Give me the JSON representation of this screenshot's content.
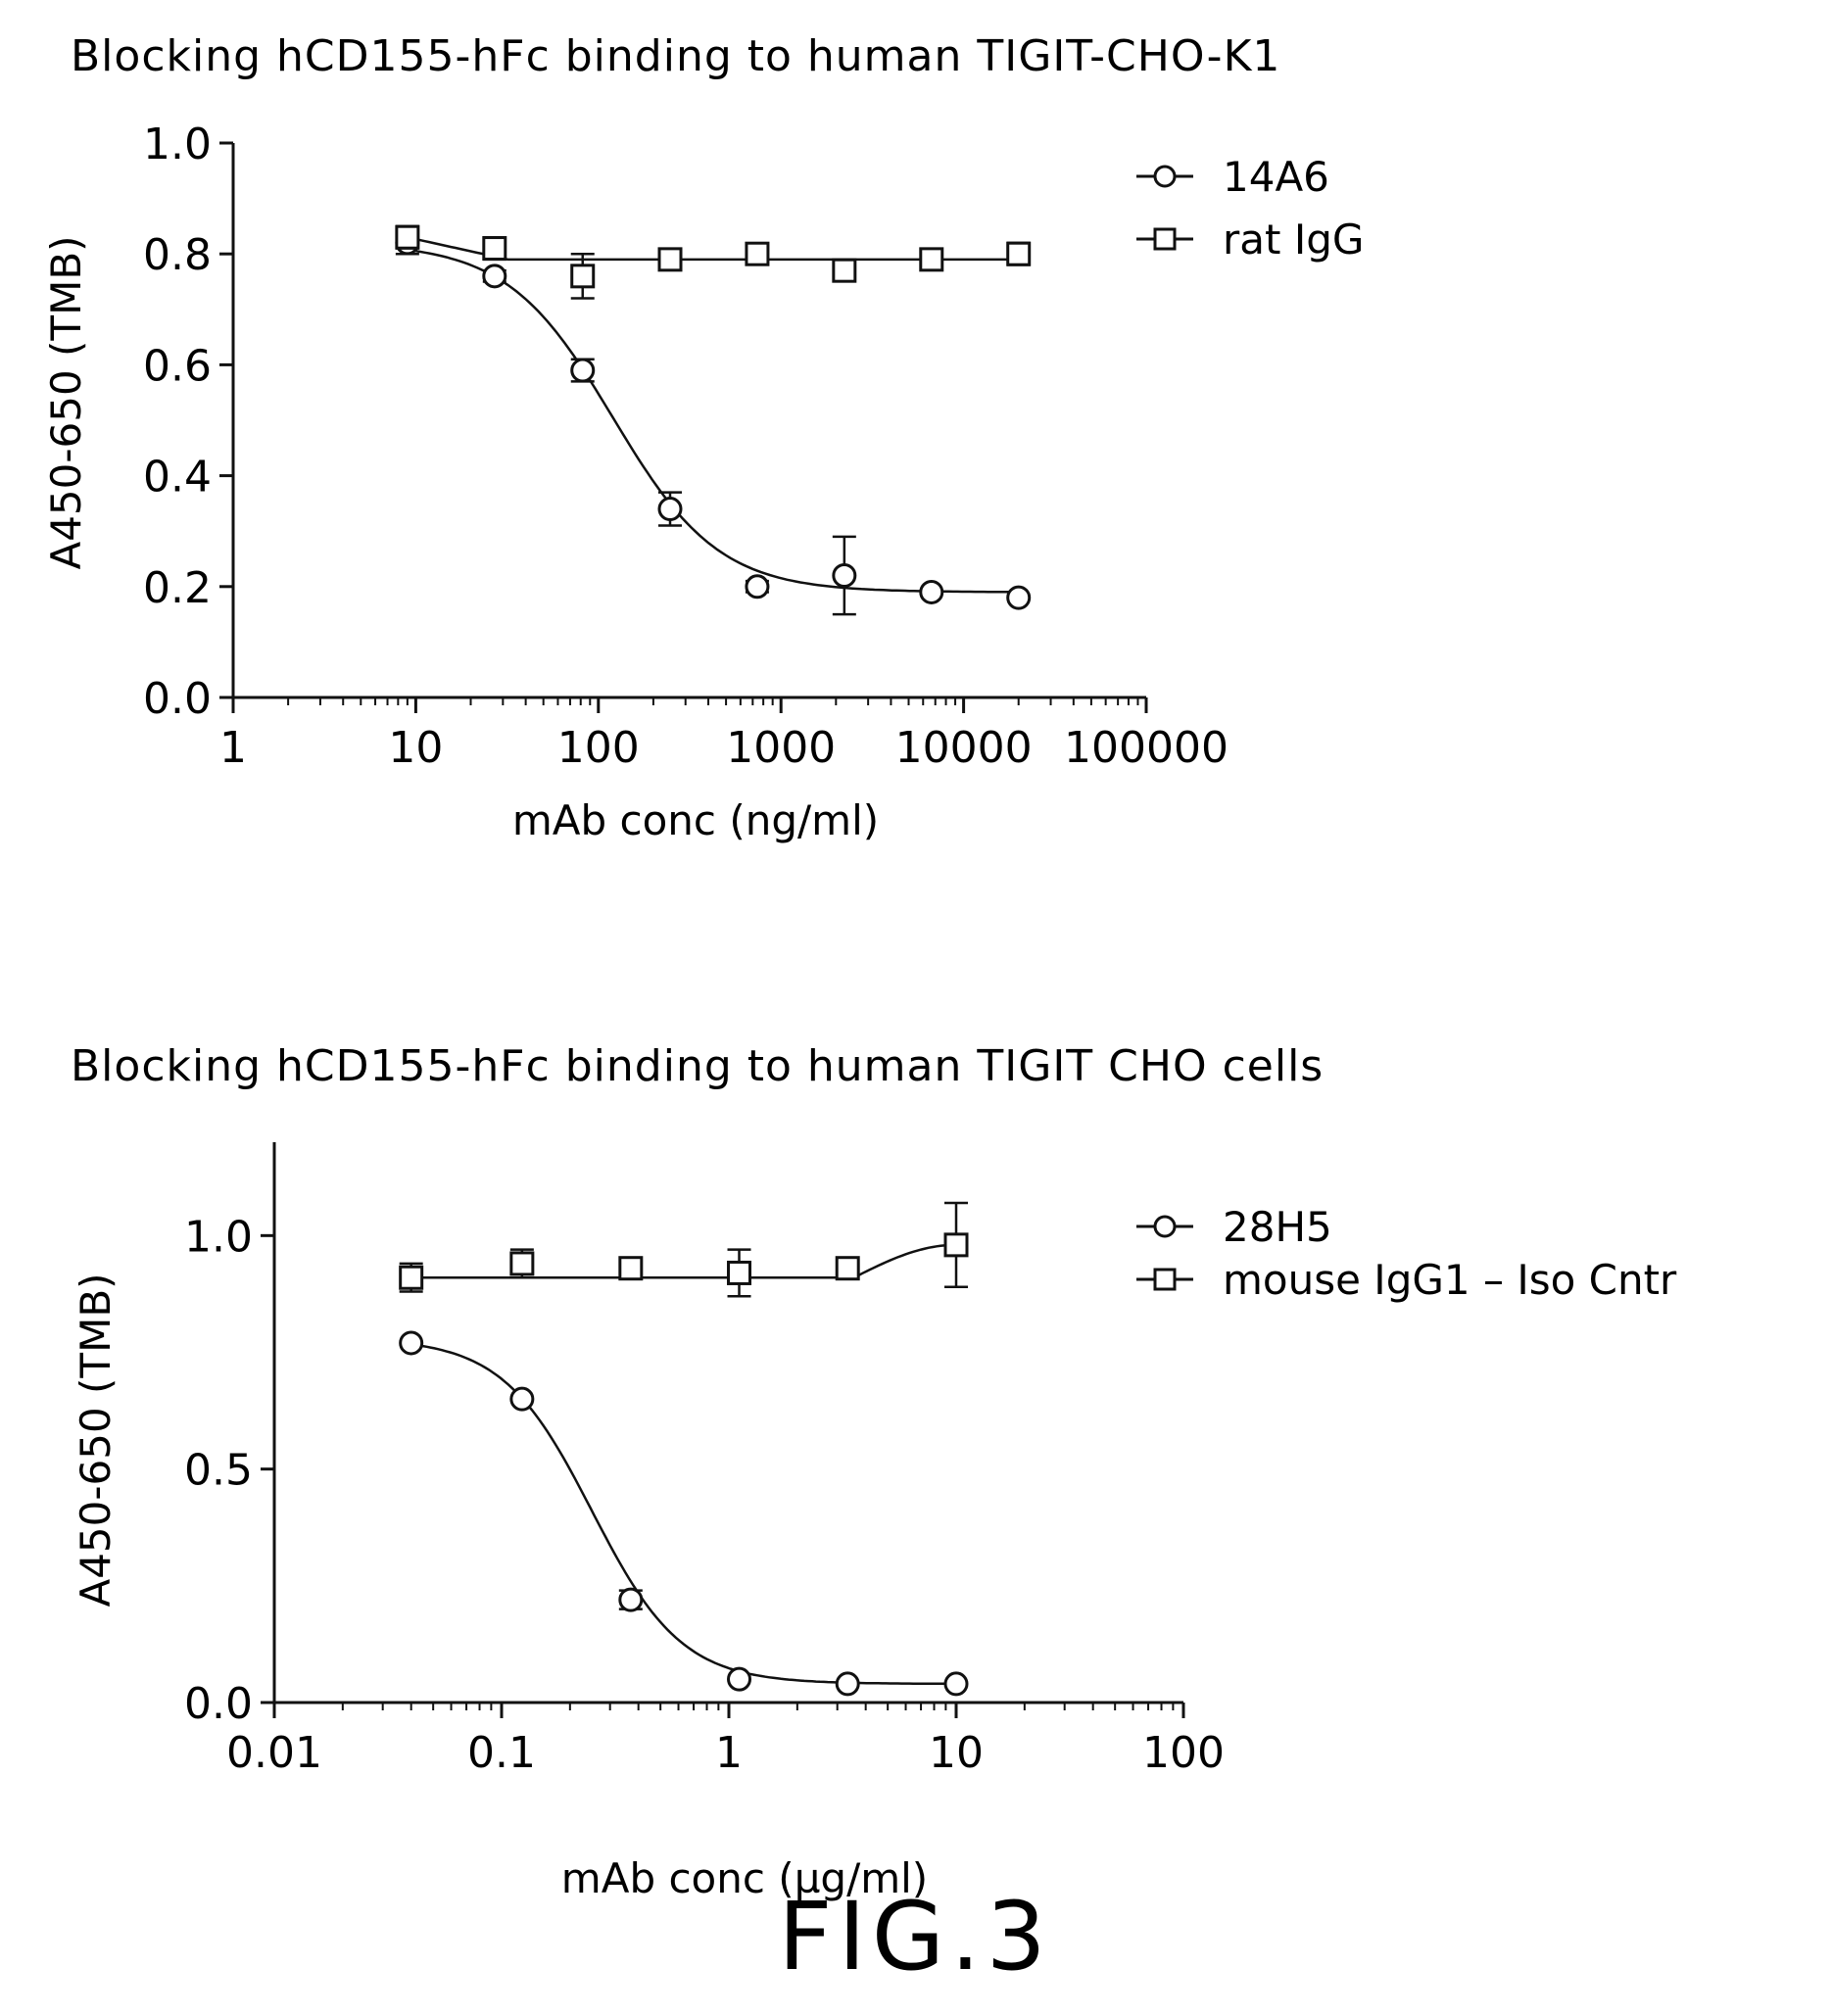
{
  "figure_label": "FIG.3",
  "colors": {
    "ink": "#111111",
    "background": "#ffffff"
  },
  "chart_data": [
    {
      "type": "scatter",
      "title": "Blocking hCD155-hFc binding to human TIGIT-CHO-K1",
      "xlabel": "mAb conc (ng/ml)",
      "ylabel": "A450-650 (TMB)",
      "xscale": "log",
      "xlim": [
        1,
        100000
      ],
      "ylim": [
        0.0,
        1.0
      ],
      "x_ticks": [
        1,
        10,
        100,
        1000,
        10000,
        100000
      ],
      "x_tick_labels": [
        "1",
        "10",
        "100",
        "1000",
        "10000",
        "100000"
      ],
      "y_ticks": [
        0.0,
        0.2,
        0.4,
        0.6,
        0.8,
        1.0
      ],
      "y_tick_labels": [
        "0.0",
        "0.2",
        "0.4",
        "0.6",
        "0.8",
        "1.0"
      ],
      "legend_position": "top-right",
      "grid": false,
      "series": [
        {
          "name": "14A6",
          "marker": "circle",
          "fit": {
            "top": 0.82,
            "bottom": 0.19,
            "ec50": 120,
            "hill": 1.5
          },
          "points": [
            {
              "x": 9,
              "y": 0.82,
              "err": 0.02
            },
            {
              "x": 27,
              "y": 0.76,
              "err": 0.01
            },
            {
              "x": 82,
              "y": 0.59,
              "err": 0.02
            },
            {
              "x": 247,
              "y": 0.34,
              "err": 0.03
            },
            {
              "x": 741,
              "y": 0.2,
              "err": 0.01
            },
            {
              "x": 2222,
              "y": 0.22,
              "err": 0.07
            },
            {
              "x": 6667,
              "y": 0.19,
              "err": 0.0
            },
            {
              "x": 20000,
              "y": 0.18,
              "err": 0.0
            }
          ]
        },
        {
          "name": "rat IgG",
          "marker": "square",
          "fit": {
            "line": 0.79,
            "start_y": 0.83
          },
          "points": [
            {
              "x": 9,
              "y": 0.83,
              "err": 0.02
            },
            {
              "x": 27,
              "y": 0.81,
              "err": 0.02
            },
            {
              "x": 82,
              "y": 0.76,
              "err": 0.04
            },
            {
              "x": 247,
              "y": 0.79,
              "err": 0.0
            },
            {
              "x": 741,
              "y": 0.8,
              "err": 0.01
            },
            {
              "x": 2222,
              "y": 0.77,
              "err": 0.01
            },
            {
              "x": 6667,
              "y": 0.79,
              "err": 0.0
            },
            {
              "x": 20000,
              "y": 0.8,
              "err": 0.02
            }
          ]
        }
      ]
    },
    {
      "type": "scatter",
      "title": "Blocking hCD155-hFc binding to human  TIGIT CHO cells",
      "xlabel": "mAb conc (µg/ml)",
      "ylabel": "A450-650 (TMB)",
      "xscale": "log",
      "xlim": [
        0.01,
        100
      ],
      "ylim": [
        0.0,
        1.2
      ],
      "x_ticks": [
        0.01,
        0.1,
        1,
        10,
        100
      ],
      "x_tick_labels": [
        "0.01",
        "0.1",
        "1",
        "10",
        "100"
      ],
      "y_ticks": [
        0.0,
        0.5,
        1.0
      ],
      "y_tick_labels": [
        "0.0",
        "0.5",
        "1.0"
      ],
      "legend_position": "top-right",
      "grid": false,
      "series": [
        {
          "name": "28H5",
          "marker": "circle",
          "fit": {
            "top": 0.78,
            "bottom": 0.04,
            "ec50": 0.25,
            "hill": 2.2
          },
          "points": [
            {
              "x": 0.04,
              "y": 0.77,
              "err": 0.0
            },
            {
              "x": 0.123,
              "y": 0.65,
              "err": 0.0
            },
            {
              "x": 0.37,
              "y": 0.22,
              "err": 0.02
            },
            {
              "x": 1.11,
              "y": 0.05,
              "err": 0.0
            },
            {
              "x": 3.33,
              "y": 0.04,
              "err": 0.0
            },
            {
              "x": 10,
              "y": 0.04,
              "err": 0.0
            }
          ]
        },
        {
          "name": "mouse IgG1 – Iso Cntr",
          "marker": "square",
          "fit": {
            "line": 0.91,
            "end_y": 0.98
          },
          "points": [
            {
              "x": 0.04,
              "y": 0.91,
              "err": 0.03
            },
            {
              "x": 0.123,
              "y": 0.94,
              "err": 0.03
            },
            {
              "x": 0.37,
              "y": 0.93,
              "err": 0.0
            },
            {
              "x": 1.11,
              "y": 0.92,
              "err": 0.05
            },
            {
              "x": 3.33,
              "y": 0.93,
              "err": 0.01
            },
            {
              "x": 10,
              "y": 0.98,
              "err": 0.09
            }
          ]
        }
      ]
    }
  ]
}
